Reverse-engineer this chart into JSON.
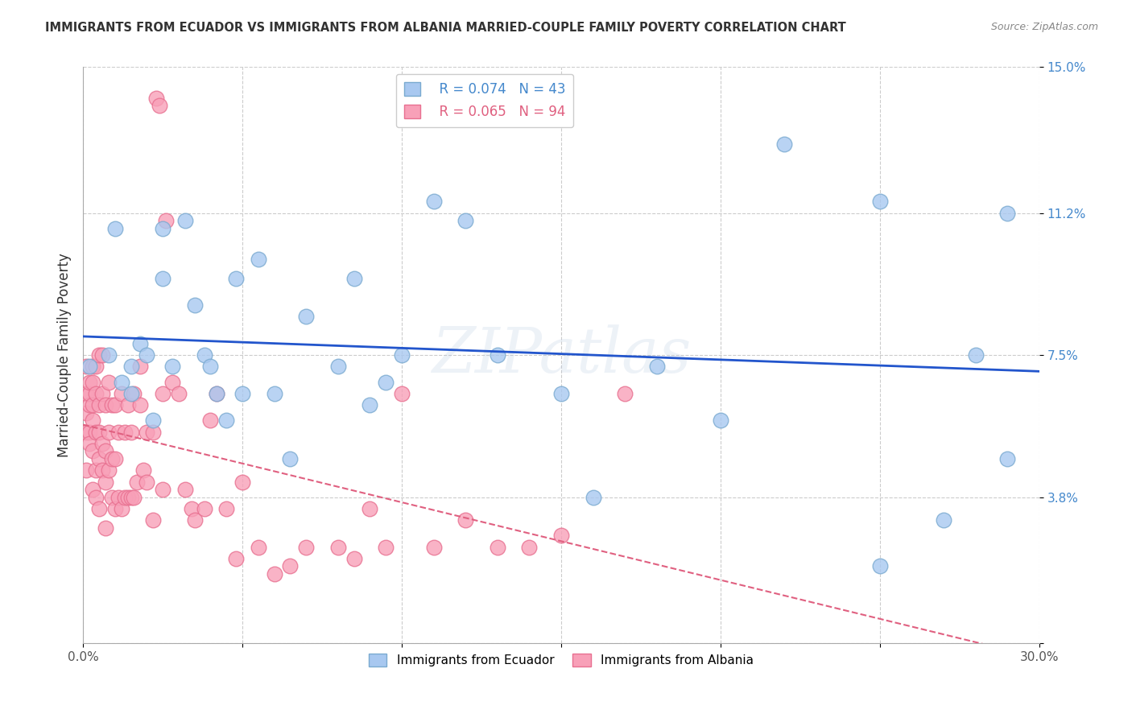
{
  "title": "IMMIGRANTS FROM ECUADOR VS IMMIGRANTS FROM ALBANIA MARRIED-COUPLE FAMILY POVERTY CORRELATION CHART",
  "source": "Source: ZipAtlas.com",
  "ylabel": "Married-Couple Family Poverty",
  "xlim": [
    0.0,
    0.3
  ],
  "ylim": [
    0.0,
    0.15
  ],
  "xticks": [
    0.0,
    0.05,
    0.1,
    0.15,
    0.2,
    0.25,
    0.3
  ],
  "xticklabels": [
    "0.0%",
    "",
    "",
    "",
    "",
    "",
    "30.0%"
  ],
  "ytick_positions": [
    0.0,
    0.038,
    0.075,
    0.112,
    0.15
  ],
  "ytick_labels": [
    "",
    "3.8%",
    "7.5%",
    "11.2%",
    "15.0%"
  ],
  "ecuador_color": "#a8c8f0",
  "albania_color": "#f8a0b8",
  "ecuador_edge": "#7aaad0",
  "albania_edge": "#e87090",
  "trend_ecuador_color": "#2255cc",
  "trend_albania_color": "#e06080",
  "R_ecuador": 0.074,
  "N_ecuador": 43,
  "R_albania": 0.065,
  "N_albania": 94,
  "watermark": "ZIPatlas",
  "legend_label_ecuador": "Immigrants from Ecuador",
  "legend_label_albania": "Immigrants from Albania",
  "ecuador_x": [
    0.002,
    0.008,
    0.01,
    0.012,
    0.015,
    0.015,
    0.018,
    0.02,
    0.022,
    0.025,
    0.025,
    0.028,
    0.032,
    0.035,
    0.038,
    0.04,
    0.042,
    0.045,
    0.048,
    0.05,
    0.055,
    0.06,
    0.065,
    0.07,
    0.08,
    0.085,
    0.09,
    0.095,
    0.1,
    0.11,
    0.12,
    0.13,
    0.15,
    0.16,
    0.18,
    0.2,
    0.22,
    0.25,
    0.25,
    0.27,
    0.28,
    0.29,
    0.29
  ],
  "ecuador_y": [
    0.072,
    0.075,
    0.108,
    0.068,
    0.072,
    0.065,
    0.078,
    0.075,
    0.058,
    0.108,
    0.095,
    0.072,
    0.11,
    0.088,
    0.075,
    0.072,
    0.065,
    0.058,
    0.095,
    0.065,
    0.1,
    0.065,
    0.048,
    0.085,
    0.072,
    0.095,
    0.062,
    0.068,
    0.075,
    0.115,
    0.11,
    0.075,
    0.065,
    0.038,
    0.072,
    0.058,
    0.13,
    0.02,
    0.115,
    0.032,
    0.075,
    0.112,
    0.048
  ],
  "albania_x": [
    0.001,
    0.001,
    0.001,
    0.001,
    0.001,
    0.002,
    0.002,
    0.002,
    0.002,
    0.002,
    0.003,
    0.003,
    0.003,
    0.003,
    0.003,
    0.003,
    0.004,
    0.004,
    0.004,
    0.004,
    0.004,
    0.005,
    0.005,
    0.005,
    0.005,
    0.005,
    0.006,
    0.006,
    0.006,
    0.006,
    0.007,
    0.007,
    0.007,
    0.007,
    0.008,
    0.008,
    0.008,
    0.009,
    0.009,
    0.009,
    0.01,
    0.01,
    0.01,
    0.011,
    0.011,
    0.012,
    0.012,
    0.013,
    0.013,
    0.014,
    0.014,
    0.015,
    0.015,
    0.016,
    0.016,
    0.017,
    0.018,
    0.018,
    0.019,
    0.02,
    0.02,
    0.022,
    0.022,
    0.023,
    0.024,
    0.025,
    0.025,
    0.026,
    0.028,
    0.03,
    0.032,
    0.034,
    0.035,
    0.038,
    0.04,
    0.042,
    0.045,
    0.048,
    0.05,
    0.055,
    0.06,
    0.065,
    0.07,
    0.08,
    0.085,
    0.09,
    0.095,
    0.1,
    0.11,
    0.12,
    0.13,
    0.14,
    0.15,
    0.17
  ],
  "albania_y": [
    0.06,
    0.055,
    0.065,
    0.072,
    0.045,
    0.062,
    0.055,
    0.065,
    0.068,
    0.052,
    0.05,
    0.058,
    0.062,
    0.068,
    0.072,
    0.04,
    0.045,
    0.055,
    0.065,
    0.072,
    0.038,
    0.048,
    0.055,
    0.062,
    0.075,
    0.035,
    0.045,
    0.052,
    0.065,
    0.075,
    0.042,
    0.05,
    0.062,
    0.03,
    0.045,
    0.055,
    0.068,
    0.038,
    0.048,
    0.062,
    0.035,
    0.048,
    0.062,
    0.038,
    0.055,
    0.035,
    0.065,
    0.038,
    0.055,
    0.038,
    0.062,
    0.038,
    0.055,
    0.038,
    0.065,
    0.042,
    0.062,
    0.072,
    0.045,
    0.042,
    0.055,
    0.032,
    0.055,
    0.142,
    0.14,
    0.04,
    0.065,
    0.11,
    0.068,
    0.065,
    0.04,
    0.035,
    0.032,
    0.035,
    0.058,
    0.065,
    0.035,
    0.022,
    0.042,
    0.025,
    0.018,
    0.02,
    0.025,
    0.025,
    0.022,
    0.035,
    0.025,
    0.065,
    0.025,
    0.032,
    0.025,
    0.025,
    0.028,
    0.065
  ]
}
